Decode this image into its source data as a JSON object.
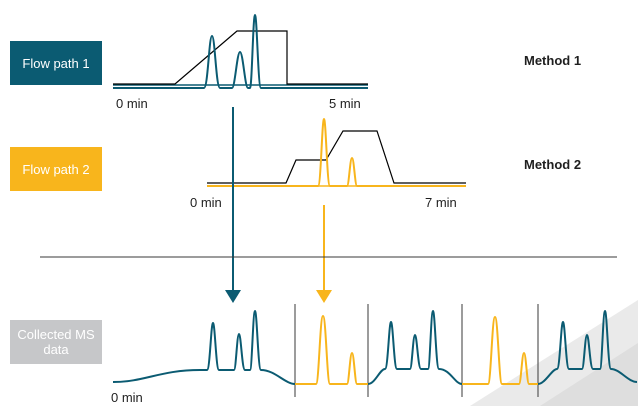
{
  "flow_path_1": {
    "label": "Flow path 1",
    "axis_start": "0 min",
    "axis_end": "5 min",
    "method": "Method 1",
    "color": "#0b5b72"
  },
  "flow_path_2": {
    "label": "Flow path 2",
    "axis_start": "0 min",
    "axis_end": "7 min",
    "method": "Method 2",
    "color": "#f8b51c"
  },
  "ms_data": {
    "label": "Collected MS data",
    "axis_start": "0 min",
    "color": "#c6c7c9",
    "segment_sequence": [
      "flow-path-1",
      "flow-path-2",
      "flow-path-1",
      "flow-path-1",
      "flow-path-2",
      "flow-path-1"
    ]
  },
  "colors": {
    "gradient_line": "#000000",
    "divider_line": "#3a3a3a",
    "background_accent": "#e8e8e8"
  }
}
